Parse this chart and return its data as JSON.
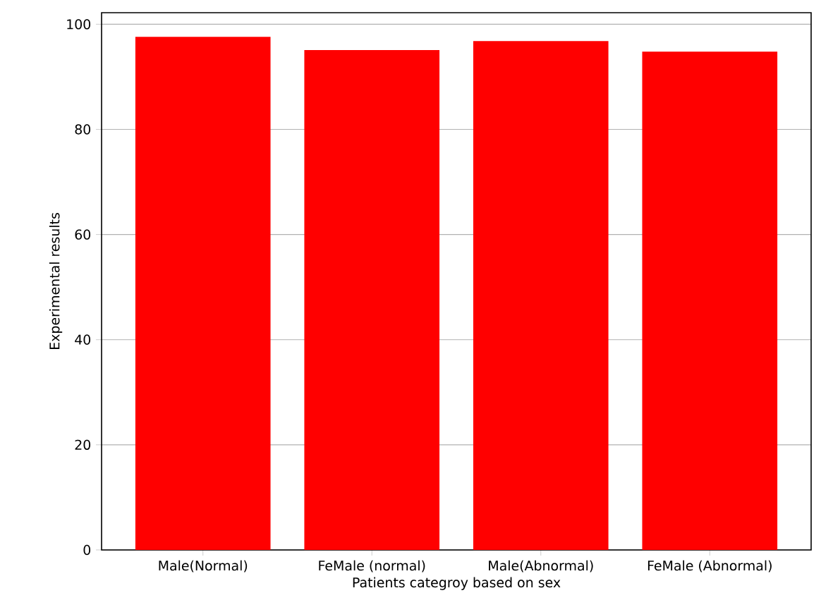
{
  "chart_data": {
    "type": "bar",
    "categories": [
      "Male(Normal)",
      "FeMale (normal)",
      "Male(Abnormal)",
      "FeMale (Abnormal)"
    ],
    "values": [
      97.6,
      95.1,
      96.8,
      94.8
    ],
    "color": "#ff0000",
    "xlabel": "Patients categroy based on sex",
    "ylabel": "Experimental results",
    "ylim": [
      0,
      102.2
    ],
    "yticks": [
      0,
      20,
      40,
      60,
      80,
      100
    ],
    "grid": "y"
  }
}
